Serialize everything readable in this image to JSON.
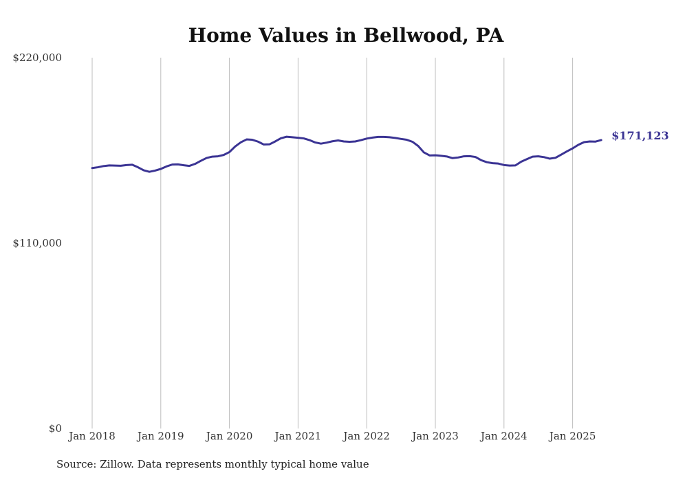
{
  "chart_data": {
    "type": "line",
    "title": "Home Values in Bellwood, PA",
    "xlabel": "",
    "ylabel": "",
    "ylim": [
      0,
      220000
    ],
    "y_ticks": [
      0,
      110000,
      220000
    ],
    "y_tick_labels": [
      "$0",
      "$110,000",
      "$220,000"
    ],
    "x_ticks": [
      2018,
      2019,
      2020,
      2021,
      2022,
      2023,
      2024,
      2025
    ],
    "x_tick_labels": [
      "Jan 2018",
      "Jan 2019",
      "Jan 2020",
      "Jan 2021",
      "Jan 2022",
      "Jan 2023",
      "Jan 2024",
      "Jan 2025"
    ],
    "grid": "vertical",
    "line_color": "#3b3494",
    "end_label": "$171,123",
    "series": [
      {
        "name": "Typical home value",
        "start": "Jan 2018",
        "frequency": "monthly",
        "values": [
          154500,
          155000,
          155700,
          156100,
          156000,
          155900,
          156300,
          156500,
          155000,
          153200,
          152300,
          153000,
          154000,
          155500,
          156600,
          156700,
          156200,
          155800,
          157000,
          158800,
          160500,
          161300,
          161500,
          162300,
          164000,
          167300,
          169800,
          171500,
          171300,
          170200,
          168500,
          168600,
          170300,
          172200,
          173100,
          172800,
          172500,
          172100,
          171100,
          169700,
          169000,
          169600,
          170400,
          170900,
          170300,
          170100,
          170300,
          171100,
          172000,
          172600,
          173000,
          173000,
          172800,
          172400,
          171800,
          171300,
          170100,
          167600,
          163800,
          162000,
          162100,
          161800,
          161400,
          160400,
          160800,
          161500,
          161600,
          161100,
          159200,
          158000,
          157400,
          157200,
          156300,
          156000,
          156100,
          158300,
          159800,
          161300,
          161500,
          161000,
          160100,
          160600,
          162500,
          164400,
          166200,
          168300,
          169900,
          170300,
          170200,
          171123
        ]
      }
    ]
  },
  "source_text": "Source: Zillow. Data represents monthly typical home value"
}
